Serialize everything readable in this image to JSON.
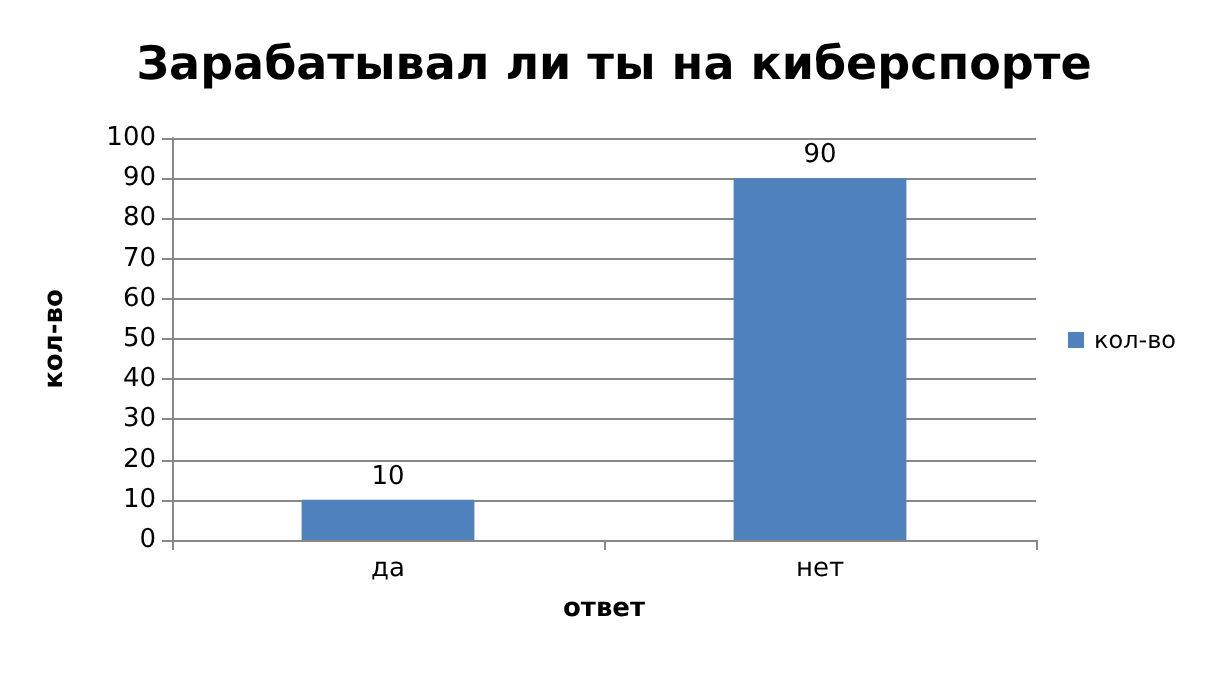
{
  "chart_data": {
    "type": "bar",
    "title": "Зарабатывал ли ты на киберспорте",
    "xlabel": "ответ",
    "ylabel": "кол-во",
    "categories": [
      "да",
      "нет"
    ],
    "series": [
      {
        "name": "кол-во",
        "color": "#4f81bd",
        "values": [
          10,
          90
        ]
      }
    ],
    "ylim": [
      0,
      100
    ],
    "yticks": [
      0,
      10,
      20,
      30,
      40,
      50,
      60,
      70,
      80,
      90,
      100
    ],
    "grid": "y",
    "legend": "right",
    "data_labels": true
  }
}
